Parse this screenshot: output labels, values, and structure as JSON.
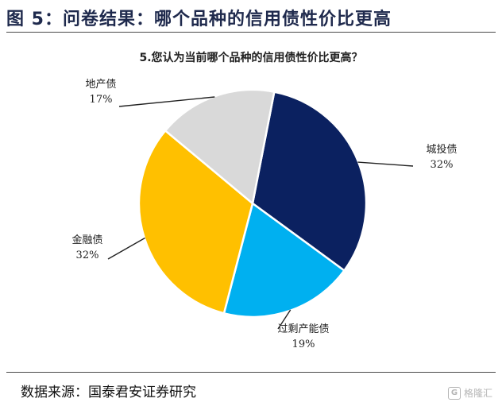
{
  "figure": {
    "title": "图 5：问卷结果：哪个品种的信用债性价比更高",
    "source": "数据来源：国泰君安证券研究",
    "watermark": "格隆汇"
  },
  "chart_data": {
    "type": "pie",
    "title": "5.您认为当前哪个品种的信用债性价比更高？",
    "slices": [
      {
        "label": "城投债",
        "value": 32,
        "value_label": "32%",
        "color": "#0b2160"
      },
      {
        "label": "过剩产能债",
        "value": 19,
        "value_label": "19%",
        "color": "#00b0f0"
      },
      {
        "label": "金融债",
        "value": 32,
        "value_label": "32%",
        "color": "#ffc000"
      },
      {
        "label": "地产债",
        "value": 17,
        "value_label": "17%",
        "color": "#d9d9d9"
      }
    ],
    "legend": "none",
    "start_angle_deg": 11
  }
}
